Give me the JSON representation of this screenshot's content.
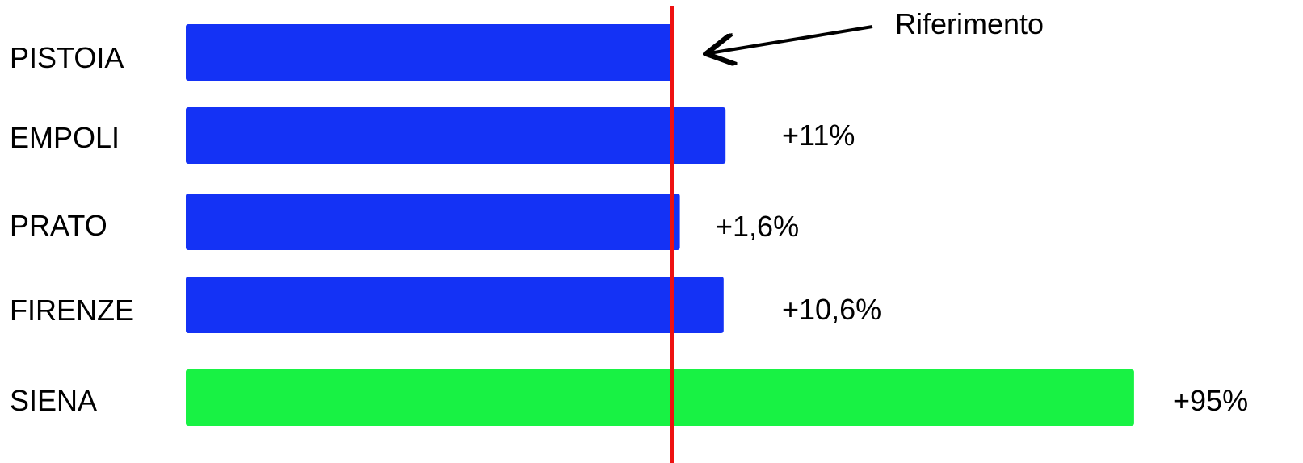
{
  "chart_data": {
    "type": "bar",
    "orientation": "horizontal",
    "categories": [
      "PISTOIA",
      "EMPOLI",
      "PRATO",
      "FIRENZE",
      "SIENA"
    ],
    "values": [
      100,
      111,
      101.6,
      110.6,
      195
    ],
    "value_labels": [
      "",
      "+11%",
      "+1,6%",
      "+10,6%",
      "+95%"
    ],
    "colors": [
      "#1432f5",
      "#1432f5",
      "#1432f5",
      "#1432f5",
      "#18f244"
    ],
    "reference": {
      "value": 100,
      "label": "Riferimento",
      "color": "#ee1111"
    },
    "grid": false,
    "legend": "none"
  }
}
